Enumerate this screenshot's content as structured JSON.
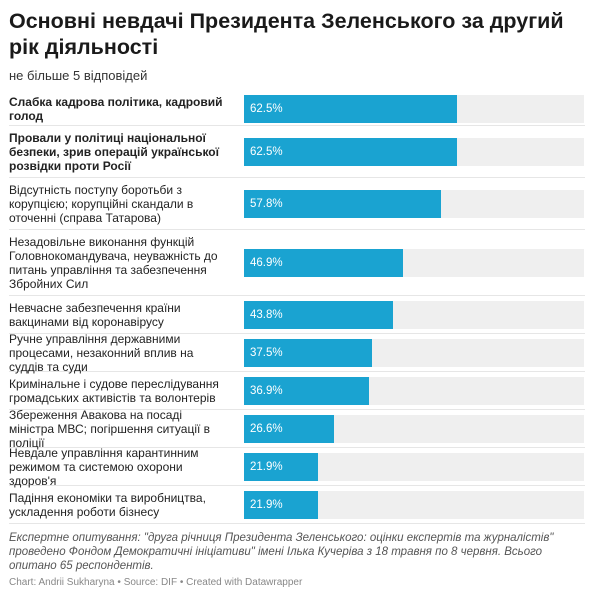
{
  "title": "Основні невдачі Президента Зеленського за другий рік діяльності",
  "subtitle": "не більше 5 відповідей",
  "chart_data": {
    "type": "bar",
    "orientation": "horizontal",
    "categories": [
      "Слабка кадрова політика, кадровий голод",
      "Провали у політиці національної безпеки, зрив операцій української розвідки проти Росії",
      "Відсутність поступу боротьби з корупцією; корупційні скандали в оточенні (справа Татарова)",
      "Незадовільне виконання функцій Головнокомандувача, неуважність до питань управління та забезпечення Збройних Сил",
      "Невчасне забезпечення країни вакцинами від коронавірусу",
      "Ручне управління державними процесами, незаконний вплив на суддів та суди",
      "Кримінальне і судове переслідування громадських активістів та волонтерів",
      "Збереження Авакова на посаді міністра МВС; погіршення ситуації в поліції",
      "Невдале управління карантинним режимом та системою охорони здоров'я",
      "Падіння економіки та виробництва, ускладення роботи бізнесу"
    ],
    "values": [
      62.5,
      62.5,
      57.8,
      46.9,
      43.8,
      37.5,
      36.9,
      26.6,
      21.9,
      21.9
    ],
    "value_labels": [
      "62.5%",
      "62.5%",
      "57.8%",
      "46.9%",
      "43.8%",
      "37.5%",
      "36.9%",
      "26.6%",
      "21.9%",
      "21.9%"
    ],
    "bold_categories": [
      true,
      true,
      false,
      false,
      false,
      false,
      false,
      false,
      false,
      false
    ],
    "xlim": [
      0,
      100
    ],
    "bar_color": "#1aa3d1",
    "track_color": "#efefef",
    "grid": false,
    "legend": "none"
  },
  "notes": "Експертне опитування: \"друга річниця Президента Зеленського: оцінки експертів та журналістів\" проведено Фондом Демократичні ініціативи\" імені Ілька Кучеріва з 18 травня по 8 червня. Всього опитано 65 респондентів.",
  "footer": {
    "chart_credit": "Chart: Andrii Sukharyna",
    "sep1": "•",
    "source": "Source: DIF",
    "sep2": "•",
    "created_with": "Created with Datawrapper"
  }
}
